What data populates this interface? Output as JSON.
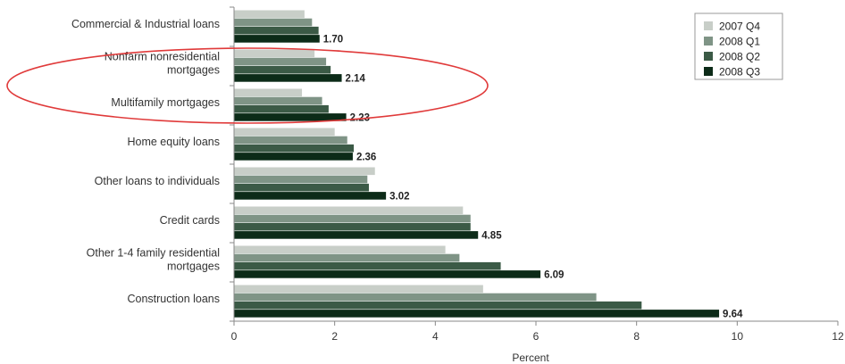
{
  "chart_data": {
    "type": "bar",
    "orientation": "horizontal",
    "categories": [
      [
        "Commercial & Industrial loans"
      ],
      [
        "Nonfarm nonresidential",
        "mortgages"
      ],
      [
        "Multifamily mortgages"
      ],
      [
        "Home equity loans"
      ],
      [
        "Other loans to individuals"
      ],
      [
        "Credit cards"
      ],
      [
        "Other 1-4 family residential",
        "mortgages"
      ],
      [
        "Construction loans"
      ]
    ],
    "series": [
      {
        "name": "2007 Q4",
        "color": "#c8cec8",
        "values": [
          1.4,
          1.6,
          1.35,
          2.0,
          2.8,
          4.55,
          4.2,
          4.95
        ]
      },
      {
        "name": "2008 Q1",
        "color": "#7f9486",
        "values": [
          1.55,
          1.83,
          1.75,
          2.25,
          2.65,
          4.7,
          4.48,
          7.2
        ]
      },
      {
        "name": "2008 Q2",
        "color": "#3b5a46",
        "values": [
          1.68,
          1.92,
          1.88,
          2.38,
          2.68,
          4.7,
          5.3,
          8.1
        ]
      },
      {
        "name": "2008 Q3",
        "color": "#0c2b18",
        "values": [
          1.7,
          2.14,
          2.23,
          2.36,
          3.02,
          4.85,
          6.09,
          9.64
        ]
      }
    ],
    "data_labels": [
      "1.70",
      "2.14",
      "2.23",
      "2.36",
      "3.02",
      "4.85",
      "6.09",
      "9.64"
    ],
    "x_ticks": [
      "0",
      "2",
      "4",
      "6",
      "8",
      "10",
      "12"
    ],
    "xlim": [
      0,
      12
    ],
    "xlabel": "Percent",
    "legend_position": "top-right",
    "annotation": "red ellipse around Nonfarm nonresidential mortgages and Multifamily mortgages",
    "annotation_color": "#e03a3a"
  }
}
